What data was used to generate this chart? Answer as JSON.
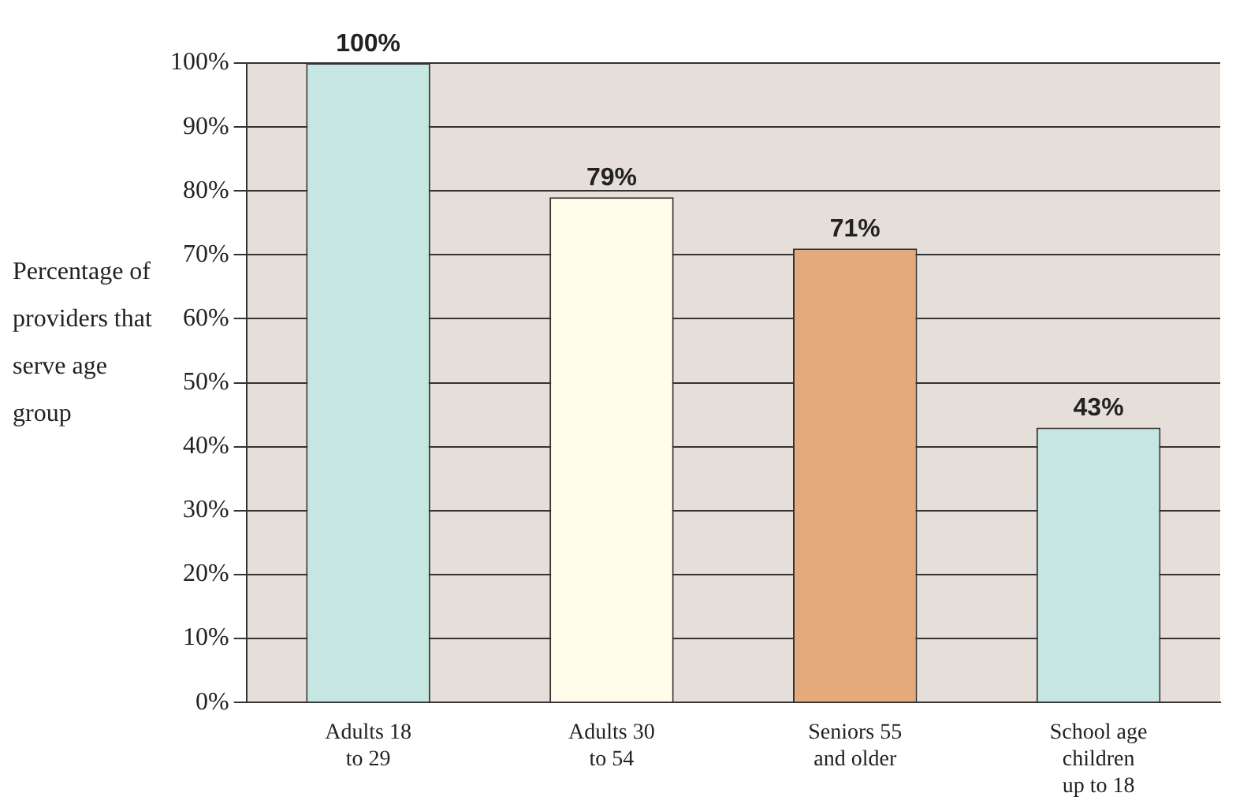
{
  "chart_data": {
    "type": "bar",
    "ylabel": "Percentage of providers that serve age group",
    "categories": [
      "Adults 18 to 29",
      "Adults 30 to 54",
      "Seniors 55 and older",
      "School age children up to 18"
    ],
    "values": [
      100,
      79,
      71,
      43
    ],
    "colors": [
      "#c6e7e1",
      "#fffcea",
      "#e4aa7c",
      "#c6e7e1"
    ],
    "value_labels": [
      "100%",
      "79%",
      "71%",
      "43%"
    ],
    "ylim": [
      0,
      100
    ],
    "yticks": [
      {
        "value": 0,
        "label": "0%"
      },
      {
        "value": 10,
        "label": "10%"
      },
      {
        "value": 20,
        "label": "20%"
      },
      {
        "value": 30,
        "label": "30%"
      },
      {
        "value": 40,
        "label": "40%"
      },
      {
        "value": 50,
        "label": "50%"
      },
      {
        "value": 60,
        "label": "60%"
      },
      {
        "value": 70,
        "label": "70%"
      },
      {
        "value": 80,
        "label": "80%"
      },
      {
        "value": 90,
        "label": "90%"
      },
      {
        "value": 100,
        "label": "100%"
      }
    ],
    "grid": true,
    "legend": false
  }
}
